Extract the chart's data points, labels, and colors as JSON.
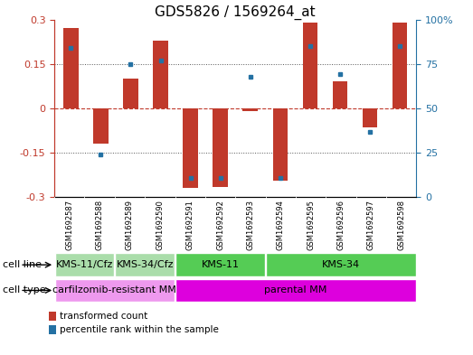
{
  "title": "GDS5826 / 1569264_at",
  "samples": [
    "GSM1692587",
    "GSM1692588",
    "GSM1692589",
    "GSM1692590",
    "GSM1692591",
    "GSM1692592",
    "GSM1692593",
    "GSM1692594",
    "GSM1692595",
    "GSM1692596",
    "GSM1692597",
    "GSM1692598"
  ],
  "bar_values": [
    0.27,
    -0.12,
    0.1,
    0.23,
    -0.27,
    -0.265,
    -0.01,
    -0.245,
    0.29,
    0.09,
    -0.065,
    0.29
  ],
  "dot_values": [
    0.205,
    -0.155,
    0.148,
    0.16,
    -0.235,
    -0.235,
    0.105,
    -0.235,
    0.21,
    0.115,
    -0.08,
    0.21
  ],
  "bar_color": "#c0392b",
  "dot_color": "#2471a3",
  "ylim": [
    -0.3,
    0.3
  ],
  "yticks_left": [
    -0.3,
    -0.15,
    0,
    0.15,
    0.3
  ],
  "yticks_right": [
    0,
    25,
    50,
    75,
    100
  ],
  "cell_line_groups": [
    {
      "label": "KMS-11/Cfz",
      "start": 0,
      "end": 2,
      "color": "#aaddaa"
    },
    {
      "label": "KMS-34/Cfz",
      "start": 2,
      "end": 4,
      "color": "#aaddaa"
    },
    {
      "label": "KMS-11",
      "start": 4,
      "end": 7,
      "color": "#55cc55"
    },
    {
      "label": "KMS-34",
      "start": 7,
      "end": 12,
      "color": "#55cc55"
    }
  ],
  "cell_type_groups": [
    {
      "label": "carfilzomib-resistant MM",
      "start": 0,
      "end": 4,
      "color": "#ee88ee"
    },
    {
      "label": "parental MM",
      "start": 4,
      "end": 12,
      "color": "#ee00ee"
    }
  ],
  "cell_line_colors": {
    "KMS-11/Cfz": "#aaddaa",
    "KMS-34/Cfz": "#aaddaa",
    "KMS-11": "#55cc55",
    "KMS-34": "#55cc55"
  },
  "cell_type_colors": {
    "carfilzomib-resistant MM": "#ee99ee",
    "parental MM": "#dd00dd"
  },
  "legend_items": [
    {
      "label": "transformed count",
      "color": "#c0392b"
    },
    {
      "label": "percentile rank within the sample",
      "color": "#2471a3"
    }
  ],
  "bar_width": 0.5,
  "background_color": "#ffffff",
  "title_fontsize": 11,
  "tick_fontsize": 8,
  "row_label_fontsize": 8,
  "sample_fontsize": 6,
  "table_fontsize": 8
}
